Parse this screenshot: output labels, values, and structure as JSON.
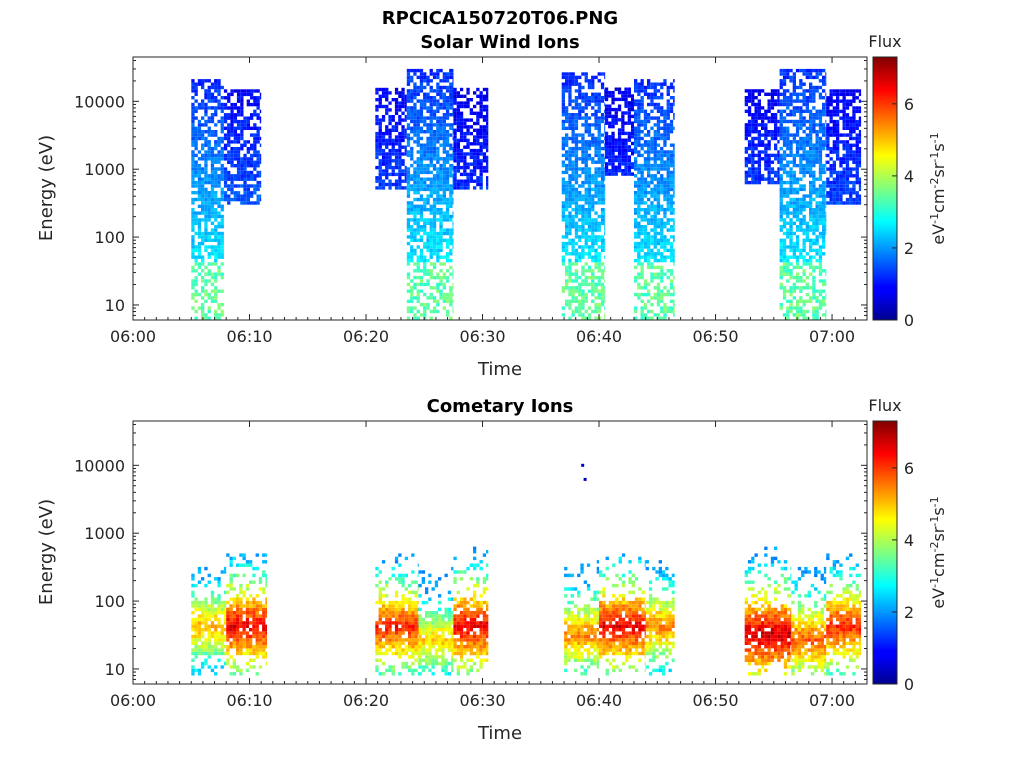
{
  "figure": {
    "title": "RPCICA150720T06.PNG"
  },
  "chart_data": [
    {
      "type": "heatmap",
      "title": "Solar Wind Ions",
      "xlabel": "Time",
      "ylabel": "Energy (eV)",
      "x_ticks": [
        "06:00",
        "06:10",
        "06:20",
        "06:30",
        "06:40",
        "06:50",
        "07:00"
      ],
      "x_range": [
        "06:00",
        "07:03"
      ],
      "y_scale": "log",
      "y_ticks": [
        "10",
        "100",
        "1000",
        "10000"
      ],
      "y_range": [
        6,
        45000
      ],
      "colorbar": {
        "title": "Flux",
        "label_base": "eV",
        "label_parts": [
          {
            "t": "eV",
            "sup": ""
          },
          {
            "t": "",
            "sup": "-1"
          },
          {
            "t": "cm",
            "sup": "-2"
          },
          {
            "t": "sr",
            "sup": "-1"
          },
          {
            "t": "s",
            "sup": "-1"
          }
        ],
        "ticks": [
          "0",
          "2",
          "4",
          "6"
        ],
        "range": [
          0,
          7.3
        ],
        "colormap": "jet"
      },
      "bursts": [
        {
          "start_min": 5.0,
          "end_min": 7.8,
          "emin": 6,
          "emax": 20000,
          "peak_flux": 3.0
        },
        {
          "start_min": 7.8,
          "end_min": 11.0,
          "emin": 300,
          "emax": 15000,
          "peak_flux": 2.2
        },
        {
          "start_min": 20.8,
          "end_min": 23.5,
          "emin": 500,
          "emax": 15000,
          "peak_flux": 2.0
        },
        {
          "start_min": 23.5,
          "end_min": 27.5,
          "emin": 6,
          "emax": 30000,
          "peak_flux": 3.0
        },
        {
          "start_min": 27.5,
          "end_min": 30.5,
          "emin": 500,
          "emax": 15000,
          "peak_flux": 1.8
        },
        {
          "start_min": 36.8,
          "end_min": 40.5,
          "emin": 6,
          "emax": 25000,
          "peak_flux": 3.0
        },
        {
          "start_min": 40.5,
          "end_min": 43.0,
          "emin": 800,
          "emax": 15000,
          "peak_flux": 1.8
        },
        {
          "start_min": 43.0,
          "end_min": 46.5,
          "emin": 6,
          "emax": 20000,
          "peak_flux": 3.0
        },
        {
          "start_min": 52.5,
          "end_min": 55.5,
          "emin": 600,
          "emax": 15000,
          "peak_flux": 2.0
        },
        {
          "start_min": 55.5,
          "end_min": 59.5,
          "emin": 6,
          "emax": 30000,
          "peak_flux": 3.0
        },
        {
          "start_min": 59.5,
          "end_min": 62.5,
          "emin": 300,
          "emax": 15000,
          "peak_flux": 2.0
        }
      ]
    },
    {
      "type": "heatmap",
      "title": "Cometary Ions",
      "xlabel": "Time",
      "ylabel": "Energy (eV)",
      "x_ticks": [
        "06:00",
        "06:10",
        "06:20",
        "06:30",
        "06:40",
        "06:50",
        "07:00"
      ],
      "x_range": [
        "06:00",
        "07:03"
      ],
      "y_scale": "log",
      "y_ticks": [
        "10",
        "100",
        "1000",
        "10000"
      ],
      "y_range": [
        6,
        45000
      ],
      "colorbar": {
        "title": "Flux",
        "label_parts": [
          {
            "t": "eV",
            "sup": ""
          },
          {
            "t": "",
            "sup": "-1"
          },
          {
            "t": "cm",
            "sup": "-2"
          },
          {
            "t": "sr",
            "sup": "-1"
          },
          {
            "t": "s",
            "sup": "-1"
          }
        ],
        "ticks": [
          "0",
          "2",
          "4",
          "6"
        ],
        "range": [
          0,
          7.3
        ],
        "colormap": "jet"
      },
      "bursts": [
        {
          "start_min": 5.0,
          "end_min": 8.0,
          "emin": 8,
          "emax": 300,
          "peak_flux": 5.2,
          "peak_energy": 40
        },
        {
          "start_min": 8.0,
          "end_min": 11.5,
          "emin": 8,
          "emax": 500,
          "peak_flux": 6.5,
          "peak_energy": 40
        },
        {
          "start_min": 20.8,
          "end_min": 24.5,
          "emin": 8,
          "emax": 500,
          "peak_flux": 6.2,
          "peak_energy": 40
        },
        {
          "start_min": 24.5,
          "end_min": 27.5,
          "emin": 8,
          "emax": 300,
          "peak_flux": 5.0,
          "peak_energy": 25
        },
        {
          "start_min": 27.5,
          "end_min": 30.5,
          "emin": 8,
          "emax": 600,
          "peak_flux": 6.5,
          "peak_energy": 40
        },
        {
          "start_min": 37.0,
          "end_min": 40.0,
          "emin": 8,
          "emax": 400,
          "peak_flux": 5.5,
          "peak_energy": 30
        },
        {
          "start_min": 40.0,
          "end_min": 44.0,
          "emin": 8,
          "emax": 500,
          "peak_flux": 6.5,
          "peak_energy": 40
        },
        {
          "start_min": 44.0,
          "end_min": 46.5,
          "emin": 8,
          "emax": 400,
          "peak_flux": 5.5,
          "peak_energy": 40
        },
        {
          "start_min": 52.5,
          "end_min": 56.5,
          "emin": 8,
          "emax": 600,
          "peak_flux": 6.8,
          "peak_energy": 30
        },
        {
          "start_min": 56.5,
          "end_min": 59.5,
          "emin": 8,
          "emax": 300,
          "peak_flux": 5.8,
          "peak_energy": 25
        },
        {
          "start_min": 59.5,
          "end_min": 62.5,
          "emin": 8,
          "emax": 500,
          "peak_flux": 6.2,
          "peak_energy": 40
        }
      ],
      "isolated_points": [
        {
          "time_min": 38.6,
          "energy": 10000,
          "flux": 0.5
        },
        {
          "time_min": 38.8,
          "energy": 6200,
          "flux": 0.5
        }
      ]
    }
  ]
}
